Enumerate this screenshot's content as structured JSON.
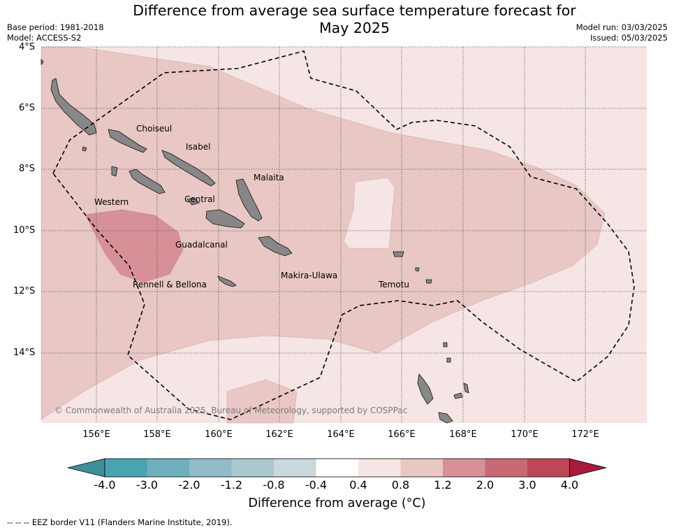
{
  "title_line1": "Difference from average sea surface temperature forecast for",
  "title_line2": "May 2025",
  "base_period": "Base period: 1981-2018",
  "model": "Model: ACCESS-S2",
  "model_run": "Model run: 03/03/2025",
  "issued": "Issued: 05/03/2025",
  "lat_labels": [
    "4°S",
    "6°S",
    "8°S",
    "10°S",
    "12°S",
    "14°S"
  ],
  "lon_labels": [
    "156°E",
    "158°E",
    "160°E",
    "162°E",
    "164°E",
    "166°E",
    "168°E",
    "170°E",
    "172°E"
  ],
  "places": {
    "choiseul": "Choiseul",
    "isabel": "Isabel",
    "malaita": "Malaita",
    "western": "Western",
    "central": "Central",
    "guadalcanal": "Guadalcanal",
    "rennell": "Rennell & Bellona",
    "makira": "Makira-Ulawa",
    "temotu": "Temotu"
  },
  "copyright": "© Commonwealth of Australia 2025, Bureau of Meteorology, supported by COSPPac",
  "colorbar": {
    "labels": [
      "-4.0",
      "-3.0",
      "-2.0",
      "-1.2",
      "-0.8",
      "-0.4",
      "0.4",
      "0.8",
      "1.2",
      "2.0",
      "3.0",
      "4.0"
    ],
    "colors": [
      "#3f8e9a",
      "#4aa3b3",
      "#6fafbd",
      "#8fbcc6",
      "#aac8cd",
      "#c9d8dc",
      "#ffffff",
      "#f5e5e4",
      "#e8c7c4",
      "#d79097",
      "#c86a76",
      "#bf4656",
      "#a81b3c"
    ],
    "title": "Difference from average (°C)"
  },
  "footer": "--  --  -- EEZ border V11 (Flanders Marine Institute, 2019).",
  "legend_colors": {
    "light": "#f5e5e4",
    "medium": "#e8c7c4",
    "strong": "#d79097",
    "land": "#878787"
  }
}
